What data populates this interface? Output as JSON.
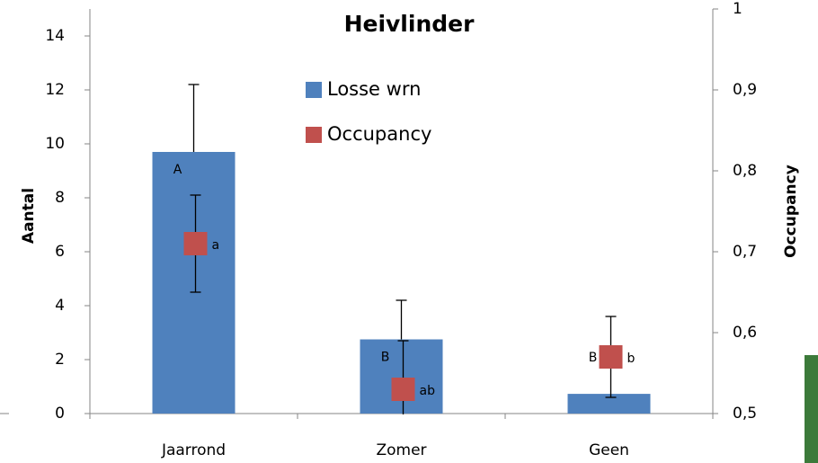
{
  "chart_data": {
    "type": "bar_with_points",
    "title": "Heivlinder",
    "categories": [
      "Jaarrond",
      "Zomer",
      "Geen"
    ],
    "y_label": "Aantal",
    "y2_label": "Occupancy",
    "ylim": [
      0,
      15
    ],
    "yticks": [
      0,
      2,
      4,
      6,
      8,
      10,
      12,
      14
    ],
    "y2lim": [
      0.5,
      1
    ],
    "y2ticks": [
      {
        "value": 0.5,
        "label": "0,5"
      },
      {
        "value": 0.6,
        "label": "0,6"
      },
      {
        "value": 0.7,
        "label": "0,7"
      },
      {
        "value": 0.8,
        "label": "0,8"
      },
      {
        "value": 0.9,
        "label": "0,9"
      },
      1
    ],
    "legend": "top-center",
    "series": [
      {
        "name": "Losse wrn",
        "color": "#4f81bd",
        "kind": "bar",
        "values": [
          9.7,
          2.75,
          0.73
        ],
        "errors": [
          2.5,
          1.45,
          null
        ],
        "group_letters": [
          "A",
          "B",
          "B"
        ]
      },
      {
        "name": "Occupancy",
        "color": "#c0504d",
        "kind": "point",
        "axis": "y2",
        "values": [
          0.71,
          0.53,
          0.57
        ],
        "errors": [
          0.06,
          0.06,
          0.05
        ],
        "group_letters": [
          "a",
          "ab",
          "b"
        ]
      }
    ]
  }
}
